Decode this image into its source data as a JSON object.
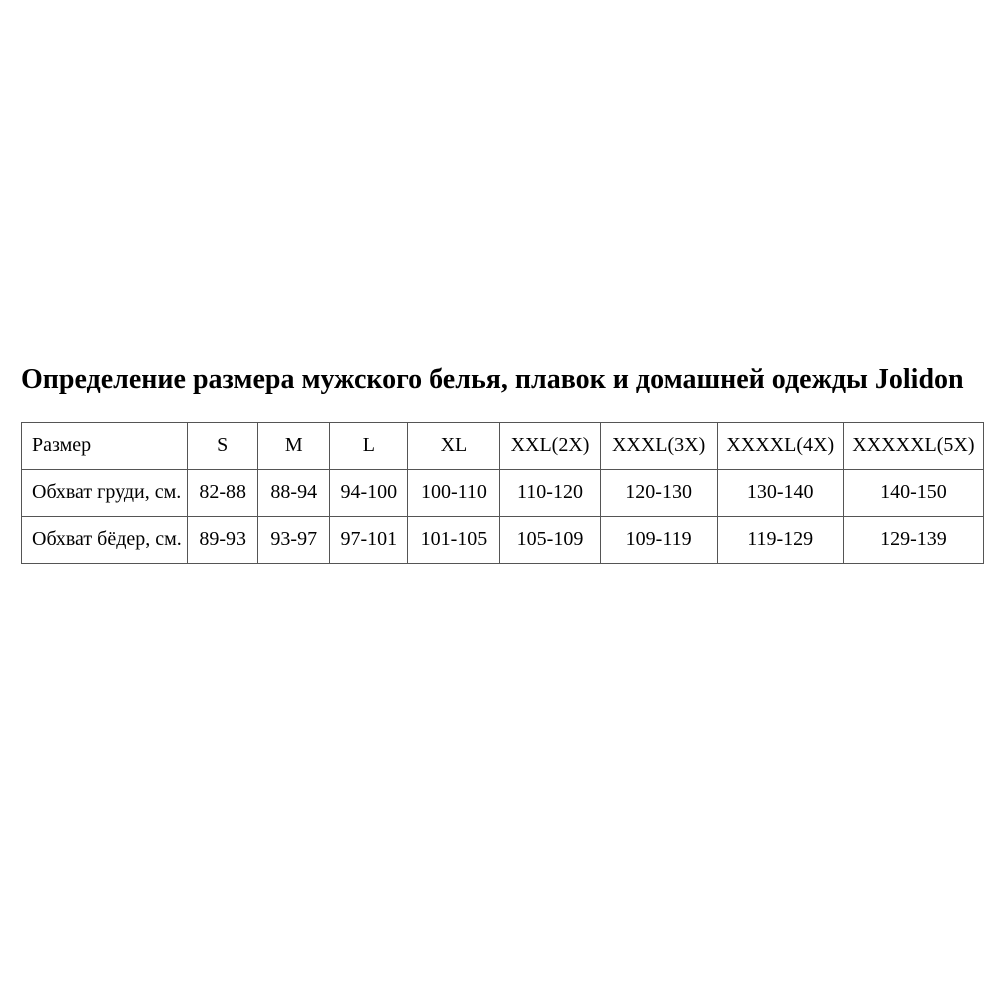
{
  "page": {
    "title": "Определение размера мужского белья, плавок и домашней одежды Jolidon",
    "background_color": "#ffffff",
    "text_color": "#000000",
    "table_border_color": "#555555"
  },
  "chart_data": {
    "type": "table",
    "title": "Определение размера мужского белья, плавок и домашней одежды Jolidon",
    "columns": [
      "Размер",
      "S",
      "M",
      "L",
      "XL",
      "XXL(2X)",
      "XXXL(3X)",
      "XXXXL(4X)",
      "XXXXXL(5X)"
    ],
    "rows": [
      {
        "label": "Обхват груди, см.",
        "values": [
          "82-88",
          "88-94",
          "94-100",
          "100-110",
          "110-120",
          "120-130",
          "130-140",
          "140-150"
        ]
      },
      {
        "label": "Обхват бёдер, см.",
        "values": [
          "89-93",
          "93-97",
          "97-101",
          "101-105",
          "105-109",
          "109-119",
          "119-129",
          "129-139"
        ]
      }
    ]
  }
}
